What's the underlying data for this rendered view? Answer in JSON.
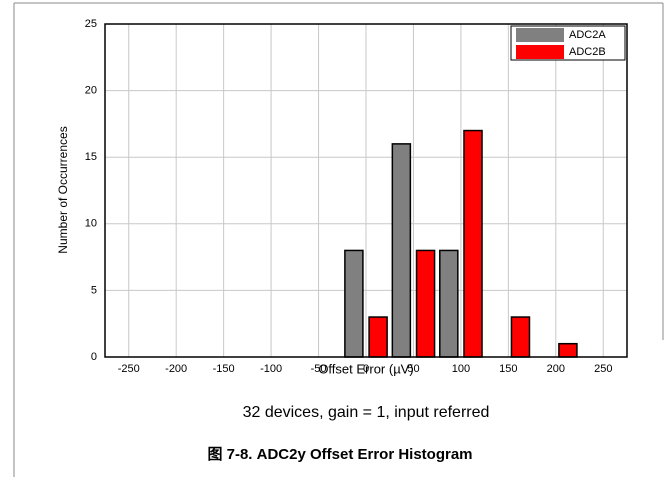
{
  "chart_data": {
    "type": "bar",
    "x": [
      0,
      50,
      100,
      150,
      200
    ],
    "series": [
      {
        "name": "ADC2A",
        "color": "#808080",
        "values": [
          8,
          16,
          8,
          0,
          0
        ]
      },
      {
        "name": "ADC2B",
        "color": "#ff0000",
        "values": [
          3,
          8,
          17,
          3,
          1
        ]
      }
    ],
    "xlim": [
      -275,
      275
    ],
    "xticks": [
      -250,
      -200,
      -150,
      -100,
      -50,
      0,
      50,
      100,
      150,
      200,
      250
    ],
    "ylim": [
      0,
      25
    ],
    "yticks": [
      0,
      5,
      10,
      15,
      20,
      25
    ],
    "xlabel": "Offset Error (µV)",
    "ylabel": "Number of Occurrences",
    "grid": true,
    "legend": "upper right",
    "caption": "32 devices, gain = 1, input referred",
    "figure_title": "图 7-8. ADC2y Offset Error Histogram"
  }
}
